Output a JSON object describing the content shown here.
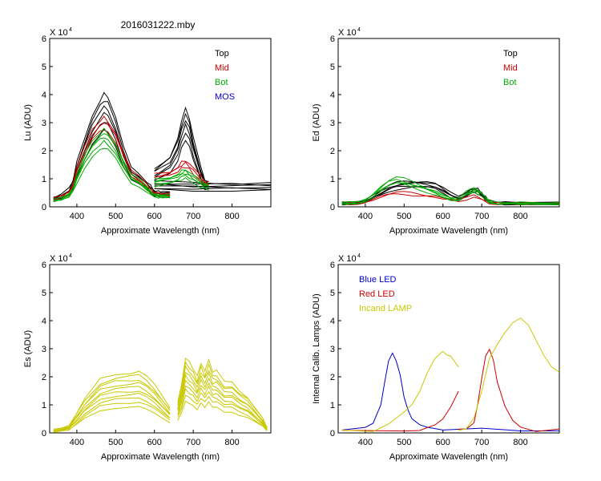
{
  "figure_title": "2016031222.mby",
  "chart_data": [
    {
      "id": "lu",
      "type": "line",
      "ylabel": "Lu (ADU)",
      "xlabel": "Approximate Wavelength (nm)",
      "multiplier": "X 10",
      "exponent": "4",
      "xlim": [
        330,
        900
      ],
      "ylim": [
        0,
        6
      ],
      "xticks": [
        400,
        500,
        600,
        700,
        800
      ],
      "yticks": [
        0,
        1,
        2,
        3,
        4,
        5,
        6
      ],
      "legend": [
        {
          "label": "Top",
          "color": "#000000"
        },
        {
          "label": "Mid",
          "color": "#cc0000"
        },
        {
          "label": "Bot",
          "color": "#00aa00"
        },
        {
          "label": "MOS",
          "color": "#0000cc"
        }
      ],
      "series": [
        {
          "name": "Top",
          "color": "#000000",
          "count": 6,
          "spread": [
            0.72,
            0.8,
            0.88,
            0.94,
            1.0,
            1.06
          ],
          "segments": [
            {
              "x": [
                340,
                360,
                380,
                390,
                400,
                420,
                440,
                460,
                470,
                480,
                500,
                520,
                540,
                560,
                580,
                590,
                600,
                610,
                620,
                640
              ],
              "y": [
                0.3,
                0.4,
                0.6,
                0.9,
                1.5,
                2.3,
                3.1,
                3.6,
                3.8,
                3.7,
                3.0,
                2.0,
                1.3,
                1.1,
                0.85,
                0.7,
                0.55,
                0.5,
                0.5,
                0.5
              ]
            },
            {
              "x": [
                600,
                620,
                640,
                660,
                670,
                680,
                690,
                700,
                720,
                730,
                740
              ],
              "y": [
                1.3,
                1.5,
                1.7,
                2.3,
                2.9,
                3.3,
                3.0,
                2.3,
                1.3,
                0.9,
                0.85
              ]
            },
            {
              "x": [
                600,
                700,
                800,
                900
              ],
              "y": [
                0.85,
                0.8,
                0.8,
                0.8
              ]
            }
          ]
        },
        {
          "name": "Mid",
          "color": "#cc0000",
          "count": 3,
          "spread": [
            0.92,
            1.0,
            1.06
          ],
          "segments": [
            {
              "x": [
                340,
                360,
                380,
                390,
                400,
                420,
                440,
                460,
                470,
                480,
                500,
                520,
                540,
                560,
                580,
                590,
                600,
                610,
                620,
                640
              ],
              "y": [
                0.28,
                0.35,
                0.5,
                0.8,
                1.3,
                2.0,
                2.6,
                2.9,
                3.0,
                2.9,
                2.5,
                1.8,
                1.2,
                1.0,
                0.75,
                0.6,
                0.5,
                0.45,
                0.45,
                0.45
              ]
            },
            {
              "x": [
                600,
                620,
                640,
                660,
                670,
                680,
                690,
                700,
                720,
                730,
                740
              ],
              "y": [
                1.1,
                1.15,
                1.2,
                1.35,
                1.5,
                1.55,
                1.45,
                1.3,
                1.0,
                0.85,
                0.82
              ]
            }
          ]
        },
        {
          "name": "Bot",
          "color": "#00aa00",
          "count": 5,
          "spread": [
            0.78,
            0.86,
            0.92,
            0.97,
            1.02
          ],
          "segments": [
            {
              "x": [
                340,
                360,
                380,
                390,
                400,
                420,
                440,
                460,
                470,
                480,
                500,
                520,
                540,
                560,
                580,
                590,
                600,
                610,
                620,
                640
              ],
              "y": [
                0.25,
                0.3,
                0.45,
                0.7,
                1.1,
                1.8,
                2.3,
                2.6,
                2.7,
                2.6,
                2.2,
                1.6,
                1.1,
                0.95,
                0.7,
                0.55,
                0.45,
                0.42,
                0.42,
                0.42
              ]
            },
            {
              "x": [
                600,
                620,
                640,
                660,
                670,
                680,
                690,
                700,
                720,
                730,
                740
              ],
              "y": [
                0.95,
                1.0,
                1.05,
                1.15,
                1.25,
                1.3,
                1.2,
                1.1,
                0.9,
                0.82,
                0.8
              ]
            }
          ]
        }
      ]
    },
    {
      "id": "ed",
      "type": "line",
      "ylabel": "Ed  (ADU)",
      "xlabel": "Approximate Wavelength (nm)",
      "multiplier": "X 10",
      "exponent": "4",
      "xlim": [
        330,
        900
      ],
      "ylim": [
        0,
        6
      ],
      "xticks": [
        400,
        500,
        600,
        700,
        800
      ],
      "yticks": [
        0,
        1,
        2,
        3,
        4,
        5,
        6
      ],
      "legend": [
        {
          "label": "Top",
          "color": "#000000"
        },
        {
          "label": "Mid",
          "color": "#cc0000"
        },
        {
          "label": "Bot",
          "color": "#00aa00"
        }
      ],
      "series": [
        {
          "name": "Top",
          "color": "#000000",
          "count": 5,
          "spread": [
            0.85,
            0.92,
            1.0,
            1.06,
            1.12
          ],
          "segments": [
            {
              "x": [
                340,
                360,
                380,
                400,
                420,
                440,
                460,
                480,
                500,
                520,
                540,
                560,
                580,
                600,
                620,
                640,
                660,
                670,
                680,
                690,
                700,
                710,
                720,
                740,
                760,
                800,
                900
              ],
              "y": [
                0.12,
                0.13,
                0.15,
                0.2,
                0.35,
                0.5,
                0.65,
                0.75,
                0.8,
                0.82,
                0.82,
                0.8,
                0.75,
                0.6,
                0.42,
                0.3,
                0.45,
                0.55,
                0.6,
                0.55,
                0.45,
                0.3,
                0.18,
                0.13,
                0.12,
                0.12,
                0.12
              ]
            }
          ]
        },
        {
          "name": "Mid",
          "color": "#cc0000",
          "count": 2,
          "spread": [
            0.92,
            1.0
          ],
          "segments": [
            {
              "x": [
                340,
                360,
                380,
                400,
                420,
                440,
                460,
                480,
                500,
                520,
                540,
                560,
                580,
                600,
                620,
                640,
                660,
                680,
                700,
                720,
                740,
                800,
                900
              ],
              "y": [
                0.12,
                0.12,
                0.14,
                0.18,
                0.28,
                0.38,
                0.45,
                0.5,
                0.5,
                0.48,
                0.45,
                0.42,
                0.38,
                0.3,
                0.25,
                0.22,
                0.3,
                0.42,
                0.3,
                0.15,
                0.12,
                0.12,
                0.12
              ]
            }
          ]
        },
        {
          "name": "Bot",
          "color": "#00aa00",
          "count": 4,
          "spread": [
            0.82,
            0.9,
            0.97,
            1.04
          ],
          "segments": [
            {
              "x": [
                340,
                360,
                380,
                400,
                420,
                440,
                460,
                480,
                500,
                520,
                540,
                560,
                580,
                600,
                620,
                640,
                660,
                680,
                700,
                720,
                740,
                800,
                900
              ],
              "y": [
                0.12,
                0.13,
                0.16,
                0.25,
                0.45,
                0.7,
                0.9,
                1.0,
                0.95,
                0.85,
                0.75,
                0.65,
                0.55,
                0.42,
                0.3,
                0.25,
                0.5,
                0.65,
                0.5,
                0.2,
                0.13,
                0.12,
                0.12
              ]
            }
          ]
        }
      ]
    },
    {
      "id": "es",
      "type": "line",
      "ylabel": "Es  (ADU)",
      "xlabel": "Approximate Wavelength (nm)",
      "multiplier": "X 10",
      "exponent": "4",
      "xlim": [
        330,
        900
      ],
      "ylim": [
        0,
        6
      ],
      "xticks": [
        400,
        500,
        600,
        700,
        800
      ],
      "yticks": [
        0,
        1,
        2,
        3,
        4,
        5,
        6
      ],
      "legend": [],
      "series": [
        {
          "name": "Es",
          "color": "#c8c800",
          "count": 10,
          "spread": [
            0.42,
            0.5,
            0.57,
            0.63,
            0.69,
            0.75,
            0.81,
            0.87,
            0.93,
            1.0
          ],
          "segments": [
            {
              "x": [
                340,
                380,
                420,
                460,
                500,
                540,
                560,
                580,
                600,
                620,
                640
              ],
              "y": [
                0.1,
                0.25,
                1.2,
                1.9,
                2.1,
                2.15,
                2.2,
                2.0,
                1.7,
                1.3,
                0.9
              ]
            },
            {
              "x": [
                660,
                670,
                680,
                690,
                700,
                710,
                720,
                730,
                740,
                750,
                760,
                780,
                800,
                820,
                840,
                860,
                880,
                890
              ],
              "y": [
                1.1,
                1.7,
                2.7,
                2.5,
                2.3,
                2.0,
                2.5,
                2.2,
                2.6,
                2.2,
                2.2,
                1.8,
                1.8,
                1.5,
                1.3,
                0.9,
                0.5,
                0.2
              ]
            }
          ]
        }
      ]
    },
    {
      "id": "lamps",
      "type": "line",
      "ylabel": "Internal Calib. Lamps (ADU)",
      "xlabel": "Approximate Wavelength (nm)",
      "multiplier": "X 10",
      "exponent": "4",
      "xlim": [
        330,
        900
      ],
      "ylim": [
        0,
        6
      ],
      "xticks": [
        400,
        500,
        600,
        700,
        800
      ],
      "yticks": [
        0,
        1,
        2,
        3,
        4,
        5,
        6
      ],
      "legend": [
        {
          "label": "Blue LED",
          "color": "#0000cc"
        },
        {
          "label": "Red LED",
          "color": "#cc0000"
        },
        {
          "label": "Incand LAMP",
          "color": "#c8c800"
        }
      ],
      "series": [
        {
          "name": "Blue LED",
          "color": "#0000cc",
          "count": 1,
          "spread": [
            1.0
          ],
          "segments": [
            {
              "x": [
                340,
                400,
                420,
                440,
                450,
                460,
                470,
                480,
                490,
                500,
                510,
                520,
                540,
                560,
                600,
                700,
                800,
                900
              ],
              "y": [
                0.15,
                0.15,
                0.3,
                1.0,
                1.8,
                2.6,
                2.8,
                2.6,
                2.0,
                1.3,
                0.8,
                0.5,
                0.25,
                0.15,
                0.12,
                0.12,
                0.1,
                0.1
              ]
            }
          ]
        },
        {
          "name": "Red LED",
          "color": "#cc0000",
          "count": 1,
          "spread": [
            1.0
          ],
          "segments": [
            {
              "x": [
                340,
                500,
                540,
                580,
                600,
                620,
                640
              ],
              "y": [
                0.1,
                0.1,
                0.12,
                0.25,
                0.45,
                0.9,
                1.5
              ]
            },
            {
              "x": [
                640,
                660,
                680,
                690,
                700,
                710,
                720,
                730,
                740,
                760,
                780,
                800,
                840,
                900
              ],
              "y": [
                0.1,
                0.15,
                0.4,
                1.0,
                2.0,
                2.7,
                3.0,
                2.6,
                1.8,
                0.9,
                0.4,
                0.2,
                0.1,
                0.1
              ]
            }
          ]
        },
        {
          "name": "Incand LAMP",
          "color": "#c8c800",
          "count": 1,
          "spread": [
            1.0
          ],
          "segments": [
            {
              "x": [
                340,
                420,
                460,
                500,
                520,
                540,
                560,
                580,
                600,
                610,
                620,
                640
              ],
              "y": [
                0.05,
                0.1,
                0.3,
                0.7,
                1.0,
                1.5,
                2.2,
                2.7,
                2.9,
                2.8,
                2.7,
                2.3
              ]
            },
            {
              "x": [
                640,
                660,
                680,
                700,
                720,
                740,
                760,
                780,
                800,
                820,
                840,
                860,
                880,
                900
              ],
              "y": [
                0.05,
                0.1,
                0.5,
                1.5,
                2.7,
                3.2,
                3.6,
                3.9,
                4.05,
                3.8,
                3.3,
                2.8,
                2.4,
                2.2
              ]
            }
          ]
        }
      ]
    }
  ]
}
